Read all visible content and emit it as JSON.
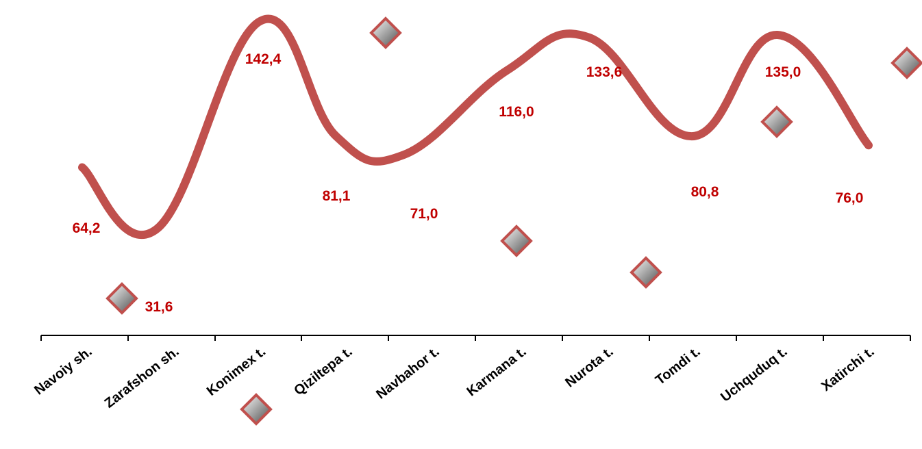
{
  "chart_data": {
    "type": "line",
    "categories": [
      "Navoiy sh.",
      "Zarafshon sh.",
      "Konimex t.",
      "Qiziltepa t.",
      "Navbahor t.",
      "Karmana t.",
      "Nurota t.",
      "Tomdi t.",
      "Uchquduq t.",
      "Xatirchi t."
    ],
    "series": [
      {
        "values": [
          64.2,
          31.6,
          142.4,
          81.1,
          71.0,
          116.0,
          133.6,
          80.8,
          135.0,
          76.0
        ]
      }
    ],
    "data_labels": [
      "64,2",
      "31,6",
      "142,4",
      "81,1",
      "71,0",
      "116,0",
      "133,6",
      "80,8",
      "135,0",
      "76,0"
    ],
    "title": "",
    "xlabel": "",
    "ylabel": "",
    "ylim": [
      0,
      150
    ],
    "grid": false,
    "legend": "none",
    "line_style": "smooth",
    "decorative_markers": "diamond",
    "colors": {
      "line": "#c0504d",
      "label": "#c00000",
      "axis": "#000000",
      "marker_border": "#c0504d",
      "marker_fill_light": "#ffffff",
      "marker_fill_dark": "#4a4a4a"
    }
  }
}
